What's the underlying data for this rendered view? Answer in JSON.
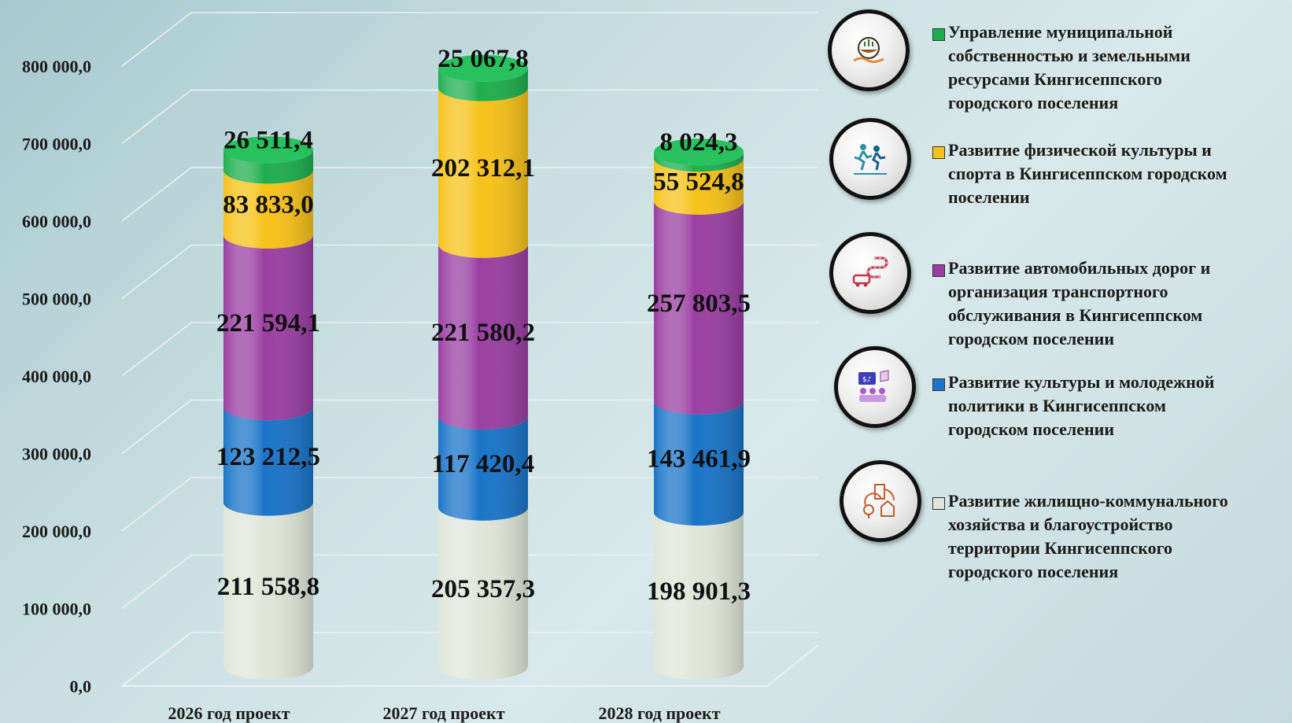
{
  "chart_data": {
    "type": "bar",
    "stacked": true,
    "categories": [
      "2026 год проект",
      "2027 год проект",
      "2028 год проект"
    ],
    "ylim": [
      0,
      800000
    ],
    "yticks": [
      "0,0",
      "100 000,0",
      "200 000,0",
      "300 000,0",
      "400 000,0",
      "500 000,0",
      "600 000,0",
      "700 000,0",
      "800 000,0"
    ],
    "series": [
      {
        "name": "Развитие жилищно-коммунального хозяйства и благоустройство территории Кингисеппского городского поселения",
        "color": "#dfe5d8",
        "values": [
          211558.8,
          205357.3,
          198901.3
        ],
        "labels": [
          "211 558,8",
          "205 357,3",
          "198 901,3"
        ]
      },
      {
        "name": "Развитие культуры и молодежной политики в Кингисеппском городском поселении",
        "color": "#1a74c8",
        "values": [
          123212.5,
          117420.4,
          143461.9
        ],
        "labels": [
          "123 212,5",
          "117 420,4",
          "143 461,9"
        ]
      },
      {
        "name": "Развитие автомобильных дорог и организация транспортного обслуживания в Кингисеппском городском поселении",
        "color": "#9a3fa2",
        "values": [
          221594.1,
          221580.2,
          257803.5
        ],
        "labels": [
          "221 594,1",
          "221 580,2",
          "257 803,5"
        ]
      },
      {
        "name": "Развитие физической культуры и спорта в Кингисеппском городском поселении",
        "color": "#f7c21a",
        "values": [
          83833.0,
          202312.1,
          55524.8
        ],
        "labels": [
          "83 833,0",
          "202 312,1",
          "55 524,8"
        ]
      },
      {
        "name": "Управление муниципальной собственностью и земельными ресурсами Кингисеппского городского поселения",
        "color": "#1fae4e",
        "values": [
          26511.4,
          25067.8,
          8024.3
        ],
        "labels": [
          "26 511,4",
          "25 067,8",
          "8 024,3"
        ]
      }
    ],
    "grid": true,
    "legend_position": "right"
  },
  "legend": [
    {
      "label_lines": [
        "Управление муниципальной",
        "собственностью и земельными",
        "ресурсами Кингисеппского",
        "городского поселения"
      ],
      "color": "#1fae4e",
      "icon": "land-management-icon"
    },
    {
      "label_lines": [
        "Развитие физической культуры и",
        "спорта в Кингисеппском городском",
        "поселении"
      ],
      "color": "#f7c21a",
      "icon": "runners-icon"
    },
    {
      "label_lines": [
        "Развитие автомобильных дорог и",
        "организация транспортного",
        "обслуживания в Кингисеппском",
        "городском поселении"
      ],
      "color": "#9a3fa2",
      "icon": "car-road-icon"
    },
    {
      "label_lines": [
        "Развитие культуры и молодежной",
        "политики в Кингисеппском",
        "городском поселении"
      ],
      "color": "#1a74c8",
      "icon": "culture-audience-icon"
    },
    {
      "label_lines": [
        "Развитие жилищно-коммунального",
        "хозяйства и благоустройство",
        "территории Кингисеппского",
        "городского поселения"
      ],
      "color": "#dfe5d8",
      "icon": "housing-icon"
    }
  ]
}
